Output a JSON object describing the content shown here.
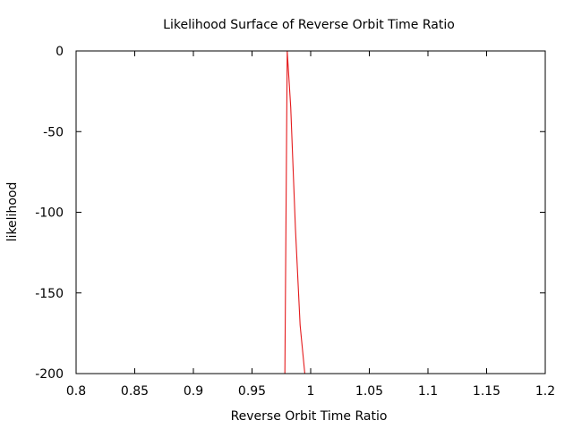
{
  "chart_data": {
    "type": "line",
    "title": "Likelihood Surface of Reverse Orbit Time Ratio",
    "xlabel": "Reverse Orbit Time Ratio",
    "ylabel": "likelihood",
    "xlim": [
      0.8,
      1.2
    ],
    "ylim": [
      -200,
      0
    ],
    "xticks": [
      "0.8",
      "0.85",
      "0.9",
      "0.95",
      "1",
      "1.05",
      "1.1",
      "1.15",
      "1.2"
    ],
    "yticks": [
      "0",
      "-50",
      "-100",
      "-150",
      "-200"
    ],
    "grid": false,
    "legend": "none",
    "series": [
      {
        "color": "#e41a1c",
        "x": [
          0.978,
          0.98,
          0.983,
          0.987,
          0.991,
          0.995
        ],
        "y": [
          -200,
          0,
          -35,
          -110,
          -170,
          -200
        ]
      }
    ]
  }
}
